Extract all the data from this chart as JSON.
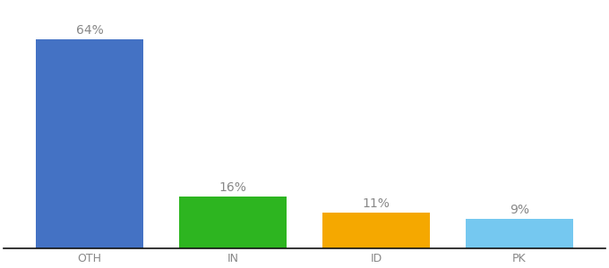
{
  "categories": [
    "OTH",
    "IN",
    "ID",
    "PK"
  ],
  "values": [
    64,
    16,
    11,
    9
  ],
  "labels": [
    "64%",
    "16%",
    "11%",
    "9%"
  ],
  "bar_colors": [
    "#4472c4",
    "#2db520",
    "#f5a800",
    "#75c8f0"
  ],
  "background_color": "#ffffff",
  "label_color": "#888888",
  "label_fontsize": 10,
  "tick_fontsize": 9,
  "ylim": [
    0,
    75
  ],
  "bar_width": 0.75
}
